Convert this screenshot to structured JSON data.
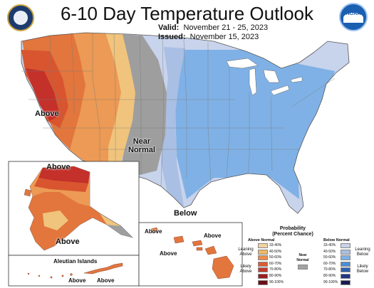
{
  "title": "6-10 Day Temperature Outlook",
  "valid_label": "Valid:",
  "valid_dates": "November 21 - 25, 2023",
  "issued_label": "Issued:",
  "issued_date": "November 15, 2023",
  "logo_text": "NOAA",
  "map_labels": {
    "above_west": "Above",
    "near_normal": "Near\nNormal",
    "below_south": "Below",
    "alaska_above_north": "Above",
    "alaska_above_south": "Above",
    "aleutian_islands": "Aleutian Islands",
    "aleutian_above_1": "Above",
    "aleutian_above_2": "Above",
    "hawaii_above_1": "Above",
    "hawaii_above_2": "Above",
    "hawaii_above_3": "Above"
  },
  "legend": {
    "title": "Probability\n(Percent Chance)",
    "above_header": "Above Normal",
    "below_header": "Below Normal",
    "leaning_above": "Leaning\nAbove",
    "likely_above": "Likely\nAbove",
    "leaning_below": "Leaning\nBelow",
    "likely_below": "Likely\nBelow",
    "near_normal": "Near\nNormal",
    "ranges": [
      "33-40%",
      "40-50%",
      "50-60%",
      "60-70%",
      "70-80%",
      "80-90%",
      "90-100%"
    ],
    "above_colors": [
      "#f2d2a3",
      "#f0b866",
      "#ec8e4b",
      "#dc5b33",
      "#c43a2b",
      "#9c1d21",
      "#6a0f16"
    ],
    "below_colors": [
      "#c8d3ec",
      "#a9bfe3",
      "#7fb1e6",
      "#4b8ed4",
      "#2e62b0",
      "#22357f",
      "#1a1a52"
    ],
    "near_color": "#a3a3a3"
  },
  "colors": {
    "above_33_40": "#f2d2a3",
    "above_40_50": "#f0b866",
    "above_50_60": "#ec8e4b",
    "above_60_70": "#dc5b33",
    "above_70_80": "#c43a2b",
    "near": "#9e9e9e",
    "below_33_40": "#c8d3ec",
    "below_40_50": "#a9bfe3",
    "below_50_60": "#7fb1e6"
  }
}
